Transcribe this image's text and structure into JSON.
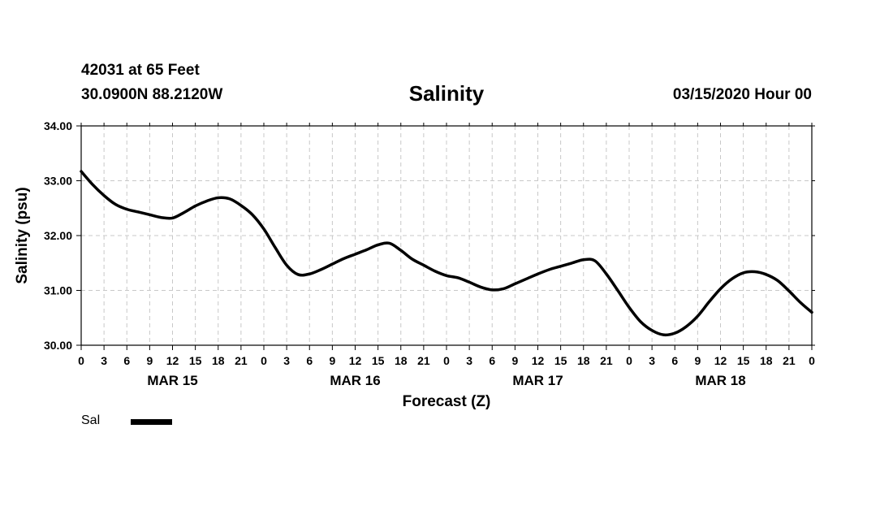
{
  "header": {
    "station": "42031 at 65 Feet",
    "coords": "30.0900N 88.2120W",
    "title": "Salinity",
    "datetime": "03/15/2020 Hour 00"
  },
  "legend": {
    "label": "Sal",
    "color": "#000000"
  },
  "chart_data": {
    "type": "line",
    "title": "Salinity",
    "xlabel": "Forecast (Z)",
    "ylabel": "Salinity (psu)",
    "ylim": [
      30.0,
      34.0
    ],
    "xlim": [
      0,
      96
    ],
    "y_ticks": [
      "30.00",
      "31.00",
      "32.00",
      "33.00",
      "34.00"
    ],
    "x_tick_labels": [
      "0",
      "3",
      "6",
      "9",
      "12",
      "15",
      "18",
      "21",
      "0",
      "3",
      "6",
      "9",
      "12",
      "15",
      "18",
      "21",
      "0",
      "3",
      "6",
      "9",
      "12",
      "15",
      "18",
      "21",
      "0",
      "3",
      "6",
      "9",
      "12",
      "15",
      "18",
      "21",
      "0"
    ],
    "day_labels": [
      {
        "label": "MAR 15",
        "hour": 12
      },
      {
        "label": "MAR 16",
        "hour": 36
      },
      {
        "label": "MAR 17",
        "hour": 60
      },
      {
        "label": "MAR 18",
        "hour": 84
      }
    ],
    "grid": true,
    "series": [
      {
        "name": "Sal",
        "x": [
          0,
          1.5,
          3,
          4.5,
          6,
          7.5,
          9,
          10.5,
          12,
          13.5,
          15,
          16.5,
          18,
          19.5,
          21,
          22.5,
          24,
          25.5,
          27,
          28.5,
          30,
          31.5,
          33,
          34.5,
          36,
          37.5,
          39,
          40.5,
          42,
          43.5,
          45,
          46.5,
          48,
          49.5,
          51,
          52.5,
          54,
          55.5,
          57,
          58.5,
          60,
          61.5,
          63,
          64.5,
          66,
          67.5,
          69,
          70.5,
          72,
          73.5,
          75,
          76.5,
          78,
          79.5,
          81,
          82.5,
          84,
          85.5,
          87,
          88.5,
          90,
          91.5,
          93,
          94.5,
          96
        ],
        "values": [
          33.17,
          32.93,
          32.73,
          32.57,
          32.48,
          32.43,
          32.38,
          32.33,
          32.32,
          32.42,
          32.54,
          32.63,
          32.69,
          32.67,
          32.55,
          32.38,
          32.12,
          31.78,
          31.46,
          31.29,
          31.3,
          31.38,
          31.48,
          31.58,
          31.66,
          31.74,
          31.83,
          31.86,
          31.73,
          31.57,
          31.46,
          31.35,
          31.27,
          31.23,
          31.15,
          31.06,
          31.01,
          31.03,
          31.12,
          31.21,
          31.3,
          31.38,
          31.44,
          31.5,
          31.56,
          31.54,
          31.3,
          31.0,
          30.69,
          30.43,
          30.27,
          30.19,
          30.22,
          30.34,
          30.53,
          30.79,
          31.03,
          31.21,
          31.32,
          31.34,
          31.29,
          31.18,
          30.99,
          30.78,
          30.6
        ]
      }
    ]
  }
}
